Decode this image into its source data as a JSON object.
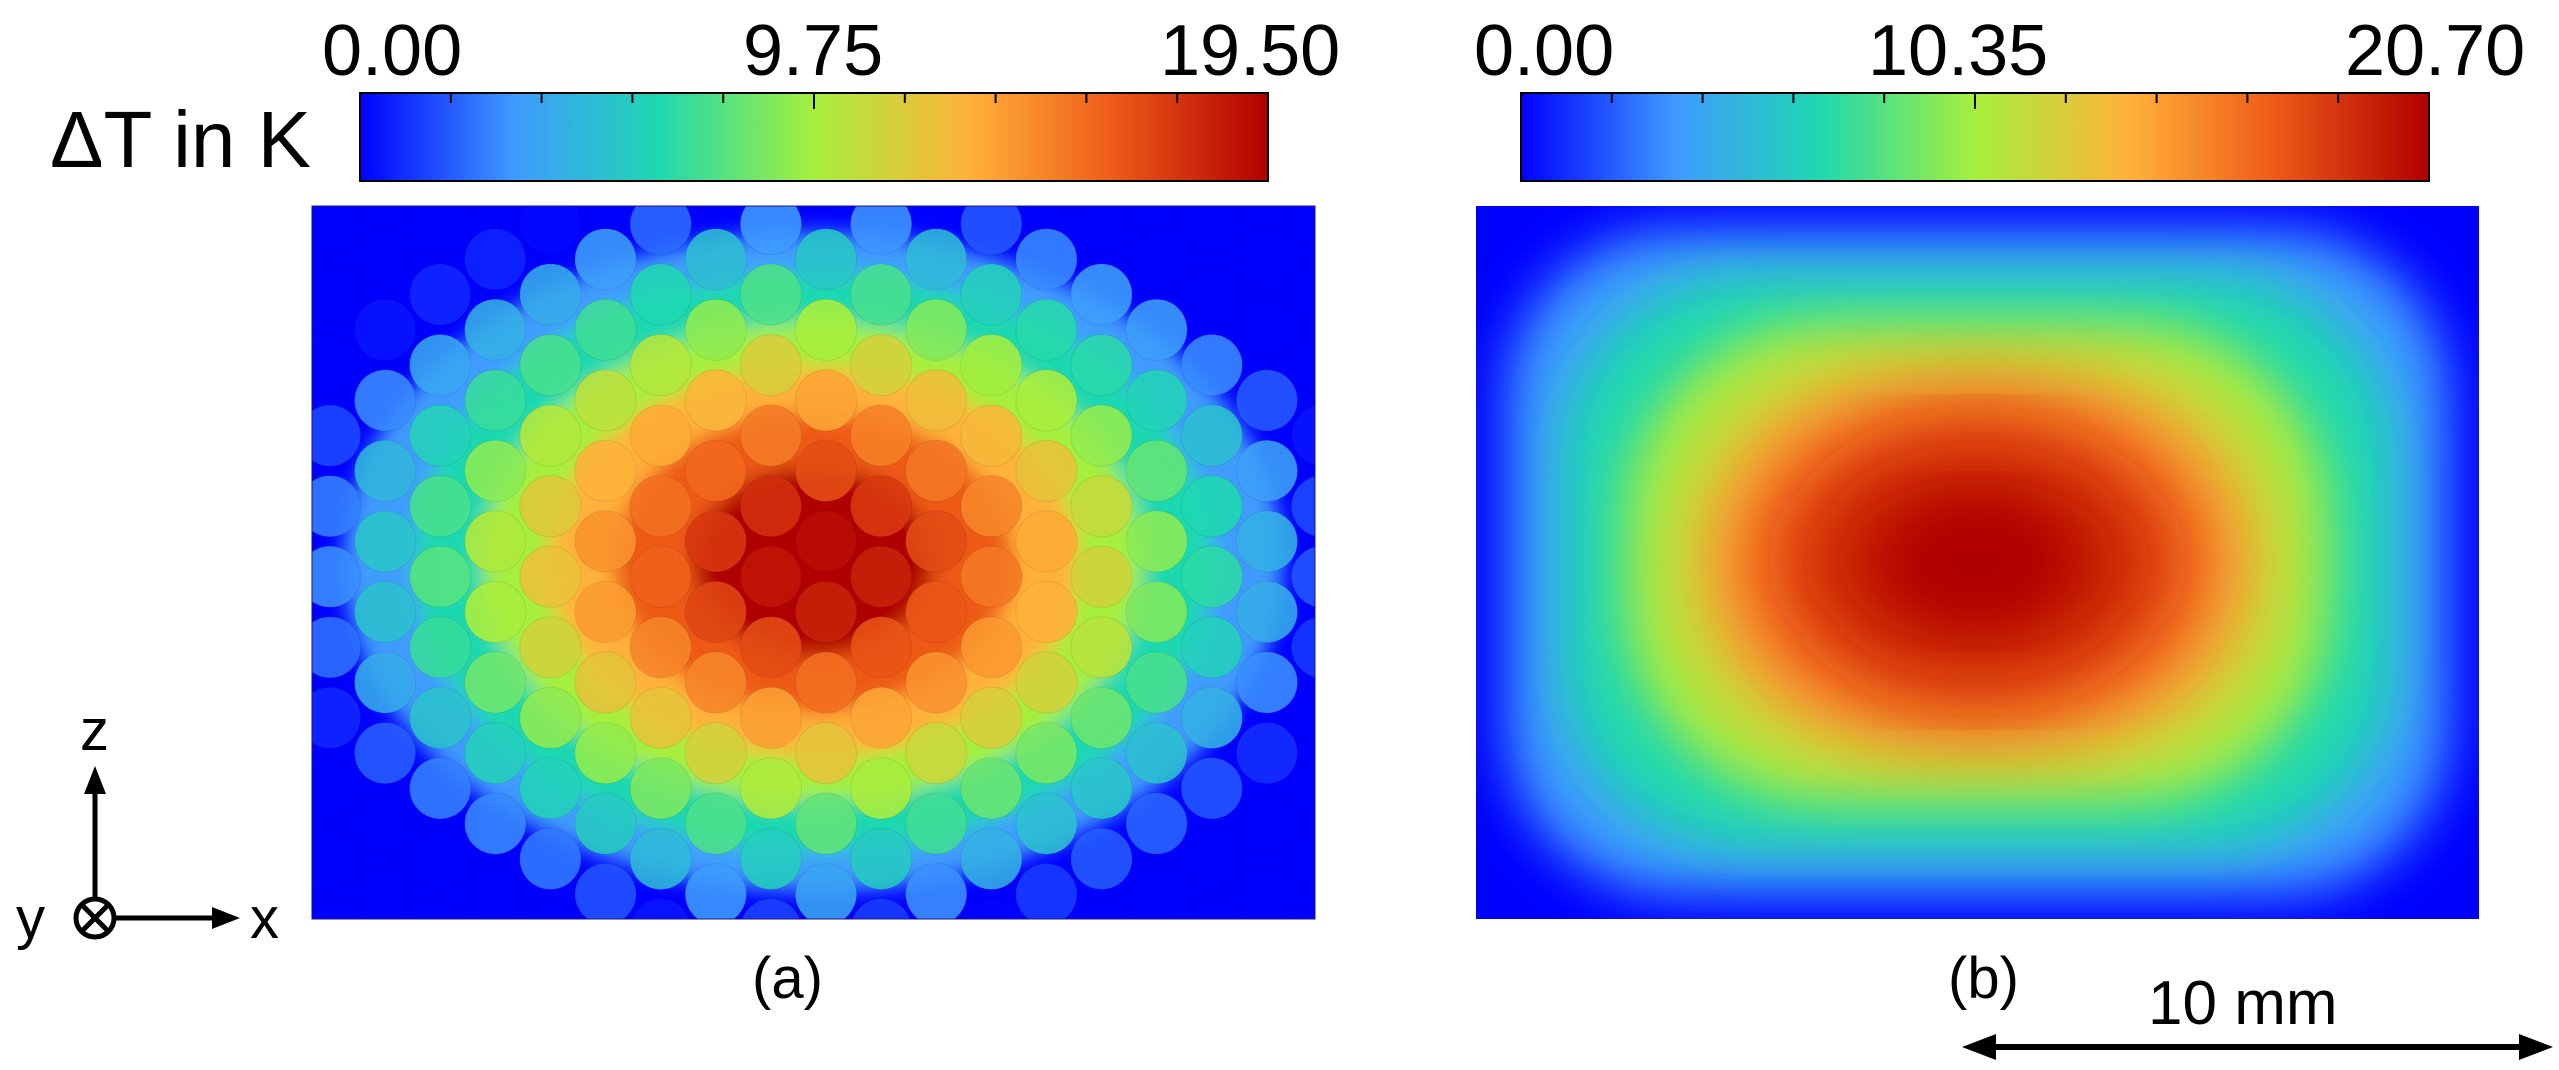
{
  "colorbar_title": "ΔT in K",
  "panel_a": {
    "label": "(a)",
    "colorbar": {
      "min": 0.0,
      "max": 19.5,
      "ticks": [
        "0.00",
        "9.75",
        "19.50"
      ]
    },
    "grid": {
      "cols": 9,
      "rows": 11
    },
    "colormap": [
      "#0000ff",
      "#3f9bff",
      "#1fd8b0",
      "#a6ef3c",
      "#ffb23a",
      "#ee5a18",
      "#b00000"
    ]
  },
  "panel_b": {
    "label": "(b)",
    "colorbar": {
      "min": 0.0,
      "max": 20.7,
      "ticks": [
        "0.00",
        "10.35",
        "20.70"
      ]
    }
  },
  "axes_triad": {
    "x": "x",
    "y": "y",
    "z": "z"
  },
  "scale_bar": {
    "label": "10 mm"
  }
}
